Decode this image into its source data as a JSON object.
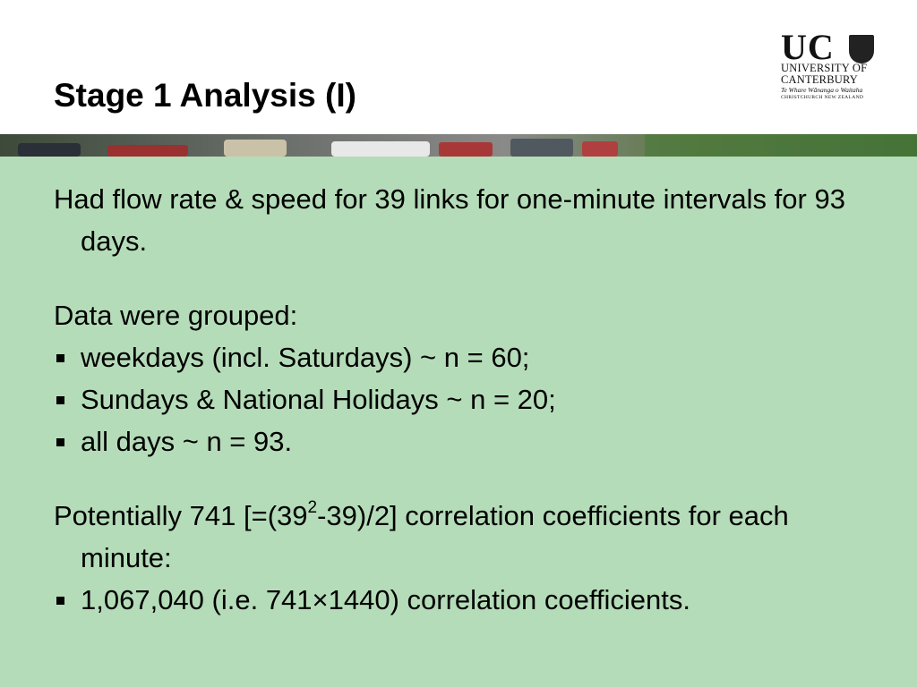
{
  "header": {
    "title": "Stage 1 Analysis (I)"
  },
  "logo": {
    "mark": "UC",
    "line1": "UNIVERSITY OF",
    "line2": "CANTERBURY",
    "motto": "Te Whare Wānanga o Waitaha",
    "place": "CHRISTCHURCH NEW ZEALAND"
  },
  "body": {
    "intro": "Had flow rate & speed for 39 links for one-minute intervals for 93 days.",
    "grouping": {
      "lead": "Data were grouped:",
      "bullets": [
        "weekdays (incl. Saturdays) ~ n = 60;",
        "Sundays & National Holidays ~ n = 20;",
        "all days ~ n = 93."
      ]
    },
    "potential": {
      "before": "Potentially 741 [=(39",
      "superscript": "2",
      "after": "-39)/2] correlation coefficients for each minute:",
      "bullets": [
        "1,067,040 (i.e. 741×1440) correlation coefficients."
      ]
    }
  }
}
